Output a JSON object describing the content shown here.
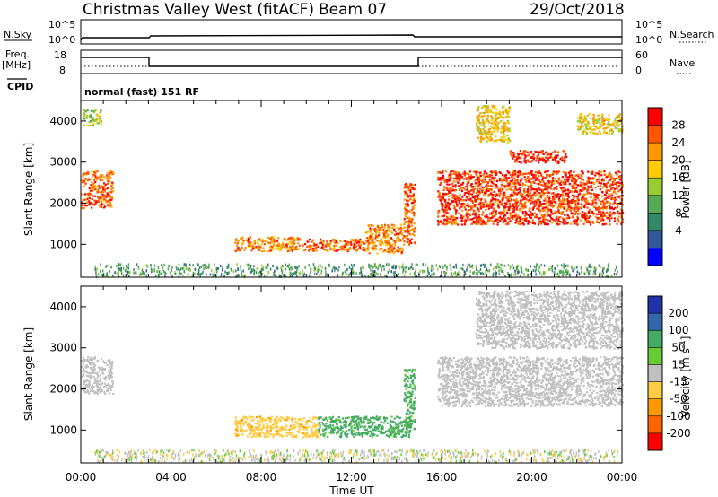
{
  "header": {
    "title": "Christmas Valley West (fitACF)",
    "beam": "Beam 07",
    "date": "29/Oct/2018"
  },
  "status_panels": {
    "nsky_label": "N.Sky",
    "nsearch_label": "N.Search",
    "noise_ticks": [
      "10^5",
      "10^0"
    ],
    "freq_label_line1": "Freq.",
    "freq_label_line2": "[MHz]",
    "freq_ticks": [
      "18",
      "8"
    ],
    "nave_label": "Nave",
    "nave_ticks": [
      "60",
      "0"
    ],
    "cpid_label": "CPID",
    "cpid_text": "normal (fast) 151 RF"
  },
  "chart_data": [
    {
      "type": "heatmap",
      "name": "power",
      "ylabel": "Slant Range [km]",
      "xlabel": "",
      "x_range_hours": [
        0,
        24
      ],
      "ylim": [
        200,
        4500
      ],
      "y_ticks": [
        1000,
        2000,
        3000,
        4000
      ],
      "colorbar": {
        "label": "Power [dB]",
        "ticks": [
          "28",
          "24",
          "20",
          "16",
          "12",
          "8",
          "4"
        ],
        "colors": [
          "#ff0000",
          "#ff5500",
          "#ff9900",
          "#ffcc00",
          "#99cc33",
          "#55aa55",
          "#338866",
          "#335599",
          "#0000ff"
        ]
      },
      "regions": [
        {
          "t0": 0.0,
          "t1": 1.4,
          "r0": 1900,
          "r1": 2800,
          "level": 24
        },
        {
          "t0": 0.1,
          "t1": 0.9,
          "r0": 3900,
          "r1": 4300,
          "level": 14
        },
        {
          "t0": 6.8,
          "t1": 9.7,
          "r0": 850,
          "r1": 1200,
          "level": 22
        },
        {
          "t0": 9.8,
          "t1": 12.6,
          "r0": 850,
          "r1": 1150,
          "level": 24
        },
        {
          "t0": 12.6,
          "t1": 14.3,
          "r0": 800,
          "r1": 1500,
          "level": 22
        },
        {
          "t0": 14.3,
          "t1": 14.8,
          "r0": 1000,
          "r1": 2500,
          "level": 24
        },
        {
          "t0": 15.8,
          "t1": 24.0,
          "r0": 1500,
          "r1": 2800,
          "level": 26
        },
        {
          "t0": 19.0,
          "t1": 21.5,
          "r0": 3000,
          "r1": 3300,
          "level": 27
        },
        {
          "t0": 17.5,
          "t1": 19.0,
          "r0": 3500,
          "r1": 4400,
          "level": 18
        },
        {
          "t0": 22.0,
          "t1": 24.0,
          "r0": 3700,
          "r1": 4200,
          "level": 18
        }
      ]
    },
    {
      "type": "heatmap",
      "name": "velocity",
      "ylabel": "Slant Range [km]",
      "xlabel": "Time UT",
      "x_range_hours": [
        0,
        24
      ],
      "x_ticks": [
        "00:00",
        "04:00",
        "08:00",
        "12:00",
        "16:00",
        "20:00",
        "00:00"
      ],
      "ylim": [
        200,
        4500
      ],
      "y_ticks": [
        1000,
        2000,
        3000,
        4000
      ],
      "colorbar": {
        "label": "Velocity [m s-1]",
        "ticks": [
          "200",
          "100",
          "50",
          "15",
          "-15",
          "-50",
          "-100",
          "-200"
        ],
        "colors": [
          "#2233aa",
          "#3366aa",
          "#44aa66",
          "#66cc33",
          "#c0c0c0",
          "#ffcc44",
          "#ff9900",
          "#ff6600",
          "#ff0000"
        ]
      },
      "regions": [
        {
          "t0": 0.0,
          "t1": 1.4,
          "r0": 1900,
          "r1": 2800,
          "level": 0
        },
        {
          "t0": 6.8,
          "t1": 10.5,
          "r0": 850,
          "r1": 1350,
          "level": -40
        },
        {
          "t0": 10.5,
          "t1": 14.6,
          "r0": 850,
          "r1": 1350,
          "level": 40
        },
        {
          "t0": 14.3,
          "t1": 14.8,
          "r0": 1000,
          "r1": 2500,
          "level": 40
        },
        {
          "t0": 15.8,
          "t1": 24.0,
          "r0": 1600,
          "r1": 2800,
          "level": 0
        },
        {
          "t0": 17.5,
          "t1": 24.0,
          "r0": 3000,
          "r1": 4400,
          "level": 0
        }
      ]
    }
  ]
}
